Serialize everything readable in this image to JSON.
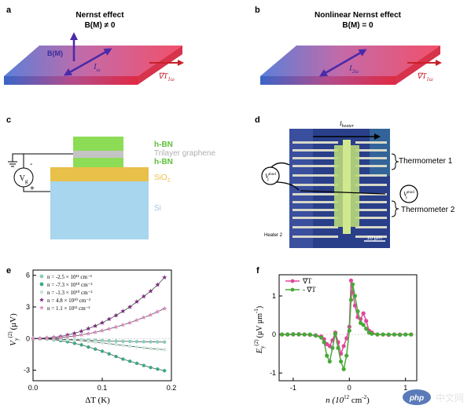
{
  "panels": {
    "a": {
      "letter": "a",
      "title": "Nernst effect",
      "condition": "B(M) ≠ 0",
      "field_label": "B(M)",
      "current_label": "I",
      "current_sub": "ω",
      "gradient_label": "∇T",
      "gradient_sub": "1ω"
    },
    "b": {
      "letter": "b",
      "title": "Nonlinear Nernst effect",
      "condition": "B(M) = 0",
      "current_label": "I",
      "current_sub": "2ω",
      "gradient_label": "∇T",
      "gradient_sub": "1ω"
    },
    "c": {
      "letter": "c",
      "layers": [
        "h-BN",
        "Trilayer graphene",
        "h-BN",
        "SiO",
        "Si"
      ],
      "sio_sub": "2",
      "voltmeter": "V",
      "voltmeter_sub": "g",
      "minus": "-",
      "plus": "+",
      "colors": {
        "hbn": "#8ddc55",
        "graphene": "#c4c4c4",
        "sio2": "#e8c04a",
        "si": "#a8d6ee"
      }
    },
    "d": {
      "letter": "d",
      "heater_label": "I",
      "heater_sub": "heater",
      "v_label": "V",
      "v_sup": "mod",
      "v_sub": "y",
      "thermometer1": "Thermometer 1",
      "thermometer2": "Thermometer 2",
      "heater2": "Heater 2",
      "scale": "10 μm"
    },
    "e": {
      "letter": "e",
      "ylabel_main": "V",
      "ylabel_sub": "y",
      "ylabel_sup": "(2)",
      "ylabel_unit": "(μV)",
      "xlabel": "ΔT (K)"
    },
    "f": {
      "letter": "f",
      "ylabel_main": "E",
      "ylabel_sub": "y",
      "ylabel_sup": "(2)",
      "ylabel_unit": "(μV μm",
      "ylabel_unit_sup": "-1",
      "ylabel_unit_end": ")",
      "xlabel_main": "n (10",
      "xlabel_sup1": "12",
      "xlabel_mid": " cm",
      "xlabel_sup2": "-2",
      "xlabel_end": ")"
    }
  },
  "watermark": {
    "logo": "php",
    "text": "中文网"
  },
  "chart_data": [
    {
      "type": "scatter",
      "panel": "e",
      "xlabel": "ΔT (K)",
      "ylabel": "V_y^(2) (μV)",
      "xlim": [
        0,
        0.2
      ],
      "ylim": [
        -4,
        6.5
      ],
      "xticks": [
        "0.0",
        "0.1",
        "0.2"
      ],
      "yticks": [
        "-3",
        "0",
        "3",
        "6"
      ],
      "legend_position": "top-left",
      "series": [
        {
          "name": "n = -2.5 × 10¹¹ cm⁻²",
          "color": "#88ccbb",
          "marker": "circle",
          "x": [
            0.0,
            0.01,
            0.02,
            0.03,
            0.04,
            0.05,
            0.06,
            0.07,
            0.08,
            0.09,
            0.1,
            0.11,
            0.12,
            0.13,
            0.14,
            0.15,
            0.16,
            0.17,
            0.18,
            0.19
          ],
          "y": [
            0.0,
            0.0,
            -0.02,
            -0.03,
            -0.05,
            -0.08,
            -0.1,
            -0.12,
            -0.15,
            -0.17,
            -0.2,
            -0.22,
            -0.24,
            -0.26,
            -0.27,
            -0.29,
            -0.3,
            -0.31,
            -0.32,
            -0.33
          ]
        },
        {
          "name": "n = -7.3 × 10¹⁰ cm⁻²",
          "color": "#3aaa86",
          "marker": "circle",
          "x": [
            0.0,
            0.01,
            0.02,
            0.03,
            0.04,
            0.05,
            0.06,
            0.07,
            0.08,
            0.09,
            0.1,
            0.11,
            0.12,
            0.13,
            0.14,
            0.15,
            0.16,
            0.17,
            0.18,
            0.19
          ],
          "y": [
            0.0,
            -0.02,
            -0.05,
            -0.1,
            -0.2,
            -0.3,
            -0.45,
            -0.6,
            -0.8,
            -1.0,
            -1.2,
            -1.45,
            -1.7,
            -1.95,
            -2.15,
            -2.35,
            -2.55,
            -2.75,
            -2.9,
            -3.05
          ]
        },
        {
          "name": "n = -1.3 × 10¹⁰ cm⁻²",
          "color": "#c8e8d8",
          "marker": "circle",
          "x": [
            0.0,
            0.01,
            0.02,
            0.03,
            0.04,
            0.05,
            0.06,
            0.07,
            0.08,
            0.09,
            0.1,
            0.11,
            0.12,
            0.13,
            0.14,
            0.15,
            0.16,
            0.17,
            0.18,
            0.19
          ],
          "y": [
            0.0,
            -0.01,
            -0.02,
            -0.04,
            -0.07,
            -0.1,
            -0.15,
            -0.2,
            -0.26,
            -0.33,
            -0.4,
            -0.48,
            -0.56,
            -0.64,
            -0.72,
            -0.8,
            -0.88,
            -0.95,
            -1.0,
            -1.05
          ]
        },
        {
          "name": "n = 4.8 × 10¹⁰ cm⁻²",
          "color": "#7b2d7f",
          "marker": "star",
          "x": [
            0.0,
            0.01,
            0.02,
            0.03,
            0.04,
            0.05,
            0.06,
            0.07,
            0.08,
            0.09,
            0.1,
            0.11,
            0.12,
            0.13,
            0.14,
            0.15,
            0.16,
            0.17,
            0.18,
            0.19
          ],
          "y": [
            0.0,
            0.02,
            0.06,
            0.12,
            0.2,
            0.35,
            0.5,
            0.7,
            0.95,
            1.2,
            1.5,
            1.85,
            2.2,
            2.6,
            3.0,
            3.5,
            4.0,
            4.5,
            5.1,
            5.8
          ]
        },
        {
          "name": "n = 1.1 × 10¹¹ cm⁻²",
          "color": "#d98bbf",
          "marker": "star",
          "x": [
            0.0,
            0.01,
            0.02,
            0.03,
            0.04,
            0.05,
            0.06,
            0.07,
            0.08,
            0.09,
            0.1,
            0.11,
            0.12,
            0.13,
            0.14,
            0.15,
            0.16,
            0.17,
            0.18,
            0.19
          ],
          "y": [
            0.0,
            0.01,
            0.03,
            0.06,
            0.1,
            0.17,
            0.25,
            0.35,
            0.47,
            0.6,
            0.75,
            0.92,
            1.1,
            1.3,
            1.5,
            1.75,
            2.0,
            2.25,
            2.55,
            2.85
          ]
        }
      ]
    },
    {
      "type": "line",
      "panel": "f",
      "xlabel": "n (10¹² cm⁻²)",
      "ylabel": "E_y^(2) (μV μm⁻¹)",
      "xlim": [
        -1.25,
        1.2
      ],
      "ylim": [
        -1.2,
        1.55
      ],
      "xticks": [
        "-1",
        "0",
        "1"
      ],
      "yticks": [
        "-1",
        "0",
        "1"
      ],
      "legend_position": "top-left",
      "series": [
        {
          "name": "∇T",
          "color": "#e0469c",
          "marker": "circle",
          "x": [
            -1.2,
            -1.1,
            -1.0,
            -0.9,
            -0.8,
            -0.7,
            -0.6,
            -0.5,
            -0.45,
            -0.4,
            -0.35,
            -0.3,
            -0.25,
            -0.2,
            -0.15,
            -0.1,
            -0.05,
            0.0,
            0.03,
            0.06,
            0.1,
            0.15,
            0.2,
            0.25,
            0.3,
            0.35,
            0.4,
            0.5,
            0.6,
            0.7,
            0.8,
            0.9,
            1.0,
            1.1
          ],
          "y": [
            0.0,
            0.0,
            0.0,
            0.01,
            0.0,
            -0.01,
            -0.02,
            -0.05,
            -0.12,
            -0.25,
            -0.3,
            -0.15,
            0.05,
            -0.2,
            -0.5,
            -0.3,
            -0.1,
            0.2,
            1.4,
            1.1,
            0.75,
            0.45,
            0.4,
            0.55,
            0.35,
            0.1,
            0.05,
            0.0,
            0.0,
            -0.01,
            0.0,
            0.0,
            0.0,
            0.0
          ]
        },
        {
          "name": "- ∇T",
          "color": "#48a838",
          "marker": "circle",
          "x": [
            -1.2,
            -1.1,
            -1.0,
            -0.9,
            -0.8,
            -0.7,
            -0.6,
            -0.5,
            -0.45,
            -0.4,
            -0.35,
            -0.3,
            -0.25,
            -0.2,
            -0.15,
            -0.1,
            -0.05,
            0.0,
            0.03,
            0.06,
            0.1,
            0.15,
            0.2,
            0.25,
            0.3,
            0.35,
            0.4,
            0.5,
            0.6,
            0.7,
            0.8,
            0.9,
            1.0,
            1.1
          ],
          "y": [
            0.0,
            0.0,
            0.01,
            0.0,
            0.0,
            0.0,
            -0.03,
            -0.08,
            -0.2,
            -0.55,
            -0.7,
            -0.35,
            0.02,
            -0.35,
            -0.7,
            -0.9,
            -0.55,
            0.1,
            0.9,
            1.3,
            1.0,
            0.6,
            0.3,
            0.25,
            0.15,
            0.05,
            0.02,
            0.0,
            0.0,
            0.0,
            0.0,
            -0.01,
            0.0,
            0.0
          ]
        }
      ]
    }
  ]
}
